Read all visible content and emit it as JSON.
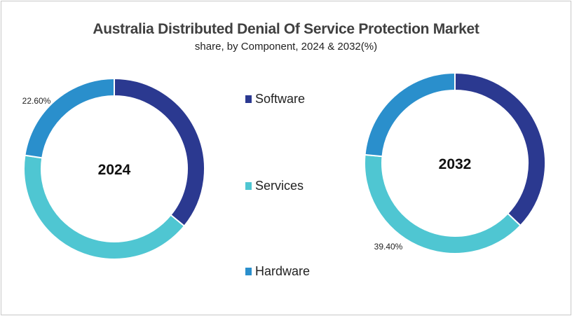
{
  "chart_data": {
    "type": "pie",
    "variant": "donut",
    "title": "Australia Distributed Denial Of Service Protection Market",
    "subtitle": "share, by Component, 2024 & 2032(%)",
    "categories": [
      "Software",
      "Services",
      "Hardware"
    ],
    "colors": [
      "#2b3990",
      "#4fc6d2",
      "#2a8fcc"
    ],
    "legend_position": "center",
    "charts": [
      {
        "label": "2024",
        "values": [
          35.9,
          41.5,
          22.6
        ],
        "data_labels": {
          "Hardware": "22.60%"
        }
      },
      {
        "label": "2032",
        "values": [
          37.1,
          39.4,
          23.5
        ],
        "data_labels": {
          "Services": "39.40%"
        }
      }
    ]
  }
}
